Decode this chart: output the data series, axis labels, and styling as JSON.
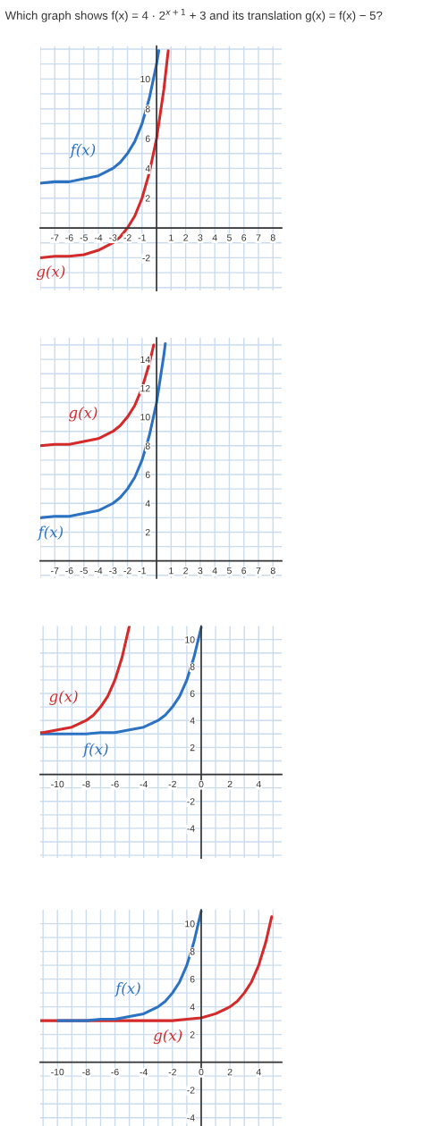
{
  "chart_data": [
    {
      "type": "line",
      "title": "Which graph shows f(x) = 4 · 2$^{x+1}$ + 3 and its translation g(x) = f(x) − 5?",
      "grid": true,
      "xlim": [
        -8,
        8.6
      ],
      "ylim": [
        -4.2,
        12.2
      ],
      "xticks": [
        {
          "value": -8,
          "label": null
        },
        -7,
        -6,
        -5,
        -4,
        -3,
        -2,
        -1,
        {
          "value": 0,
          "label": null
        },
        1,
        2,
        3,
        4,
        5,
        6,
        7,
        8
      ],
      "yticks": [
        {
          "value": -4,
          "label": null
        },
        {
          "value": -3,
          "label": null
        },
        -2,
        {
          "value": -1,
          "label": null
        },
        {
          "value": 0,
          "label": null
        },
        {
          "value": 1,
          "label": null
        },
        2,
        {
          "value": 3,
          "label": null
        },
        4,
        {
          "value": 5,
          "label": null
        },
        6,
        {
          "value": 7,
          "label": null
        },
        8,
        {
          "value": 9,
          "label": null
        },
        10,
        {
          "value": 11,
          "label": null
        },
        {
          "value": 12,
          "label": null
        }
      ],
      "series": [
        {
          "name": "f(x)",
          "color": "#2c72c3",
          "x": [
            -8,
            -7,
            -6,
            -5,
            -4,
            -3,
            -2.5,
            -2,
            -1.5,
            -1,
            -0.5,
            0,
            0.15
          ],
          "values": [
            3.0,
            3.1,
            3.1,
            3.3,
            3.5,
            4.0,
            4.4,
            5.0,
            5.8,
            7.0,
            8.7,
            11.0,
            11.9
          ]
        },
        {
          "name": "g(x)",
          "color": "#d42a2a",
          "x": [
            -8,
            -7,
            -6,
            -5,
            -4,
            -3,
            -2.5,
            -2,
            -1.5,
            -1,
            -0.5,
            0,
            0.5,
            0.8
          ],
          "values": [
            -2.0,
            -1.9,
            -1.9,
            -1.8,
            -1.5,
            -1.0,
            -0.6,
            0.0,
            0.8,
            2.0,
            3.7,
            6.0,
            9.3,
            11.9
          ]
        }
      ]
    },
    {
      "type": "line",
      "grid": true,
      "xlim": [
        -8,
        8.6
      ],
      "ylim": [
        -1.2,
        15.5
      ],
      "xticks": [
        {
          "value": -8,
          "label": null
        },
        -7,
        -6,
        -5,
        -4,
        -3,
        -2,
        -1,
        {
          "value": 0,
          "label": null
        },
        1,
        2,
        3,
        4,
        5,
        6,
        7,
        8
      ],
      "yticks": [
        {
          "value": -1,
          "label": null
        },
        {
          "value": 0,
          "label": null
        },
        {
          "value": 1,
          "label": null
        },
        2,
        {
          "value": 3,
          "label": null
        },
        4,
        {
          "value": 5,
          "label": null
        },
        6,
        {
          "value": 7,
          "label": null
        },
        8,
        {
          "value": 9,
          "label": null
        },
        10,
        {
          "value": 11,
          "label": null
        },
        12,
        {
          "value": 13,
          "label": null
        },
        14,
        {
          "value": 15,
          "label": null
        }
      ],
      "series": [
        {
          "name": "g(x)",
          "color": "#d42a2a",
          "x": [
            -8,
            -7,
            -6,
            -5,
            -4,
            -3,
            -2.5,
            -2,
            -1.5,
            -1,
            -0.5,
            -0.2
          ],
          "values": [
            8.0,
            8.1,
            8.1,
            8.3,
            8.5,
            9.0,
            9.4,
            10.0,
            10.8,
            12.0,
            13.7,
            15.0
          ]
        },
        {
          "name": "f(x)",
          "color": "#2c72c3",
          "x": [
            -8,
            -7,
            -6,
            -5,
            -4,
            -3,
            -2.5,
            -2,
            -1.5,
            -1,
            -0.5,
            0,
            0.5,
            0.6
          ],
          "values": [
            3.0,
            3.1,
            3.1,
            3.3,
            3.5,
            4.0,
            4.4,
            5.0,
            5.8,
            7.0,
            8.7,
            11.0,
            14.3,
            15.1
          ]
        }
      ]
    },
    {
      "type": "line",
      "grid": true,
      "xlim": [
        -11.2,
        5.6
      ],
      "ylim": [
        -6.2,
        11
      ],
      "xticks": [
        {
          "value": -11,
          "label": null
        },
        -10,
        {
          "value": -9,
          "label": null
        },
        -8,
        {
          "value": -7,
          "label": null
        },
        -6,
        {
          "value": -5,
          "label": null
        },
        -4,
        {
          "value": -3,
          "label": null
        },
        -2,
        {
          "value": -1,
          "label": null
        },
        0,
        {
          "value": 1,
          "label": null
        },
        2,
        {
          "value": 3,
          "label": null
        },
        4,
        {
          "value": 5,
          "label": null
        }
      ],
      "yticks": [
        {
          "value": -6,
          "label": null
        },
        {
          "value": -5,
          "label": null
        },
        -4,
        {
          "value": -3,
          "label": null
        },
        -2,
        {
          "value": -1,
          "label": null
        },
        {
          "value": 0,
          "label": null
        },
        {
          "value": 1,
          "label": null
        },
        2,
        {
          "value": 3,
          "label": null
        },
        4,
        {
          "value": 5,
          "label": null
        },
        6,
        {
          "value": 7,
          "label": null
        },
        8,
        {
          "value": 9,
          "label": null
        },
        10
      ],
      "series": [
        {
          "name": "g(x)",
          "color": "#d42a2a",
          "x": [
            -11.2,
            -11,
            -10,
            -9,
            -8,
            -7.5,
            -7,
            -6.5,
            -6,
            -5.5,
            -5
          ],
          "values": [
            3.1,
            3.1,
            3.3,
            3.5,
            4.0,
            4.4,
            5.0,
            5.8,
            7.0,
            8.7,
            11.0
          ]
        },
        {
          "name": "f(x)",
          "color": "#2c72c3",
          "x": [
            -11.2,
            -10,
            -9,
            -8,
            -7,
            -6,
            -5,
            -4,
            -3,
            -2.5,
            -2,
            -1.5,
            -1,
            -0.5,
            0
          ],
          "values": [
            3.0,
            3.0,
            3.0,
            3.0,
            3.1,
            3.1,
            3.3,
            3.5,
            4.0,
            4.4,
            5.0,
            5.8,
            7.0,
            8.7,
            10.9
          ]
        }
      ]
    },
    {
      "type": "line",
      "grid": true,
      "xlim": [
        -11.2,
        5.6
      ],
      "ylim": [
        -4.6,
        11
      ],
      "xticks": [
        {
          "value": -11,
          "label": null
        },
        -10,
        {
          "value": -9,
          "label": null
        },
        -8,
        {
          "value": -7,
          "label": null
        },
        -6,
        {
          "value": -5,
          "label": null
        },
        -4,
        {
          "value": -3,
          "label": null
        },
        -2,
        {
          "value": -1,
          "label": null
        },
        0,
        {
          "value": 1,
          "label": null
        },
        2,
        {
          "value": 3,
          "label": null
        },
        4,
        {
          "value": 5,
          "label": null
        }
      ],
      "yticks": [
        -4,
        {
          "value": -3,
          "label": null
        },
        -2,
        {
          "value": -1,
          "label": null
        },
        {
          "value": 0,
          "label": null
        },
        {
          "value": 1,
          "label": null
        },
        2,
        {
          "value": 3,
          "label": null
        },
        4,
        {
          "value": 5,
          "label": null
        },
        6,
        {
          "value": 7,
          "label": null
        },
        8,
        {
          "value": 9,
          "label": null
        },
        10
      ],
      "series": [
        {
          "name": "f(x)",
          "color": "#2c72c3",
          "x": [
            -10,
            -9,
            -8,
            -7,
            -6,
            -5,
            -4,
            -3,
            -2.5,
            -2,
            -1.5,
            -1,
            -0.5,
            0
          ],
          "values": [
            3.0,
            3.0,
            3.0,
            3.1,
            3.1,
            3.3,
            3.5,
            4.0,
            4.4,
            5.0,
            5.8,
            7.0,
            8.7,
            10.9
          ]
        },
        {
          "name": "g(x)",
          "color": "#d42a2a",
          "x": [
            -11.2,
            -8,
            -6,
            -4,
            -2,
            -1,
            0,
            1,
            2,
            2.5,
            3,
            3.5,
            4,
            4.5,
            4.9
          ],
          "values": [
            3.0,
            3.0,
            3.0,
            3.0,
            3.0,
            3.1,
            3.2,
            3.5,
            4.0,
            4.4,
            5.0,
            5.8,
            7.0,
            8.7,
            10.5
          ]
        }
      ]
    }
  ]
}
